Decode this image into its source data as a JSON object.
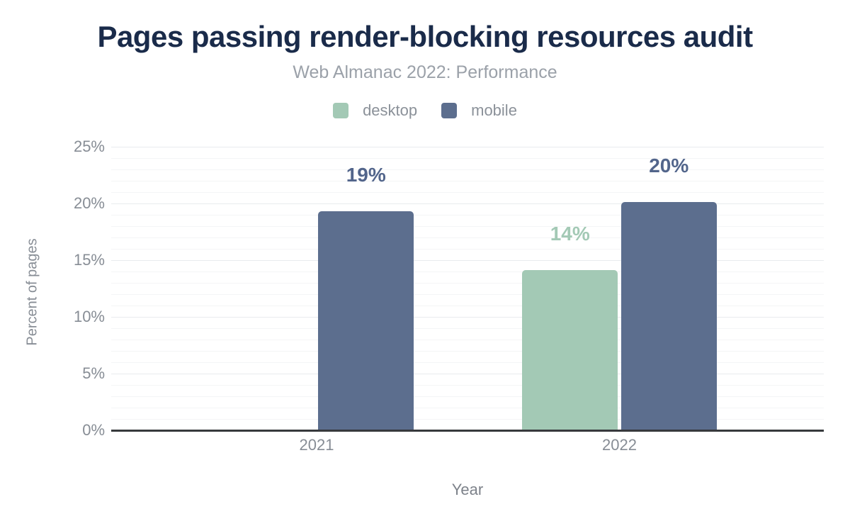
{
  "header": {
    "title": "Pages passing render-blocking resources audit",
    "subtitle": "Web Almanac 2022: Performance"
  },
  "chart_data": {
    "type": "bar",
    "title": "Pages passing render-blocking resources audit",
    "subtitle": "Web Almanac 2022: Performance",
    "categories": [
      "2021",
      "2022"
    ],
    "series": [
      {
        "name": "desktop",
        "color": "#a3c9b5",
        "label_color": "#a3c9b5",
        "values": [
          null,
          14.1
        ],
        "labels": [
          null,
          "14%"
        ]
      },
      {
        "name": "mobile",
        "color": "#5c6e8e",
        "label_color": "#52658b",
        "values": [
          19.3,
          20.1
        ],
        "labels": [
          "19%",
          "20%"
        ]
      }
    ],
    "xlabel": "Year",
    "ylabel": "Percent of pages",
    "ylim": [
      0,
      25
    ],
    "y_ticks": [
      {
        "value": 0,
        "label": "0%"
      },
      {
        "value": 5,
        "label": "5%"
      },
      {
        "value": 10,
        "label": "10%"
      },
      {
        "value": 15,
        "label": "15%"
      },
      {
        "value": 20,
        "label": "20%"
      },
      {
        "value": 25,
        "label": "25%"
      }
    ],
    "minor_tick_step": 1,
    "major_tick_step": 5,
    "grid": true,
    "legend_position": "top"
  },
  "colors": {
    "title": "#1a2b4a",
    "subtitle": "#9ba1a9",
    "axis_line": "#37393c",
    "tick_text": "#878d95",
    "grid_major": "#e9ebee",
    "grid_minor": "#f4f5f6",
    "desktop": "#a3c9b5",
    "mobile": "#5c6e8e"
  }
}
